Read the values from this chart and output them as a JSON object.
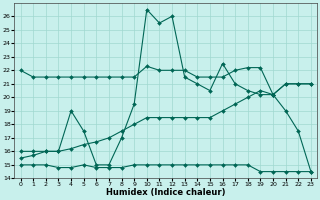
{
  "xlabel": "Humidex (Indice chaleur)",
  "xlim": [
    -0.5,
    23.5
  ],
  "ylim": [
    14,
    27
  ],
  "yticks": [
    14,
    15,
    16,
    17,
    18,
    19,
    20,
    21,
    22,
    23,
    24,
    25,
    26
  ],
  "xticks": [
    0,
    1,
    2,
    3,
    4,
    5,
    6,
    7,
    8,
    9,
    10,
    11,
    12,
    13,
    14,
    15,
    16,
    17,
    18,
    19,
    20,
    21,
    22,
    23
  ],
  "background_color": "#c8f0ec",
  "grid_color": "#a0d8d0",
  "line_color": "#006655",
  "curve1_y": [
    22,
    21.5,
    21.5,
    21.5,
    21.5,
    21.5,
    21.5,
    21.5,
    21.5,
    21.5,
    22.3,
    22,
    22,
    22,
    21.5,
    21.5,
    21.5,
    22,
    22.2,
    22.2,
    20.2,
    21,
    21,
    21
  ],
  "curve2_y": [
    16,
    16,
    16,
    16,
    19,
    17.5,
    15,
    15,
    17,
    19.5,
    26.5,
    25.5,
    26,
    21.5,
    21,
    20.5,
    22.5,
    21,
    20.5,
    20.2,
    20.2,
    21,
    21,
    21
  ],
  "curve3_y": [
    15,
    15,
    15,
    14.8,
    14.8,
    15,
    14.8,
    14.8,
    14.8,
    15,
    15,
    15,
    15,
    15,
    15,
    15,
    15,
    15,
    15,
    14.5,
    14.5,
    14.5,
    14.5,
    14.5
  ],
  "curve4_y": [
    15.5,
    15.7,
    16,
    16,
    16.2,
    16.5,
    16.7,
    17,
    17.5,
    18,
    18.5,
    18.5,
    18.5,
    18.5,
    18.5,
    18.5,
    19,
    19.5,
    20,
    20.5,
    20.2,
    19,
    17.5,
    14.5
  ]
}
